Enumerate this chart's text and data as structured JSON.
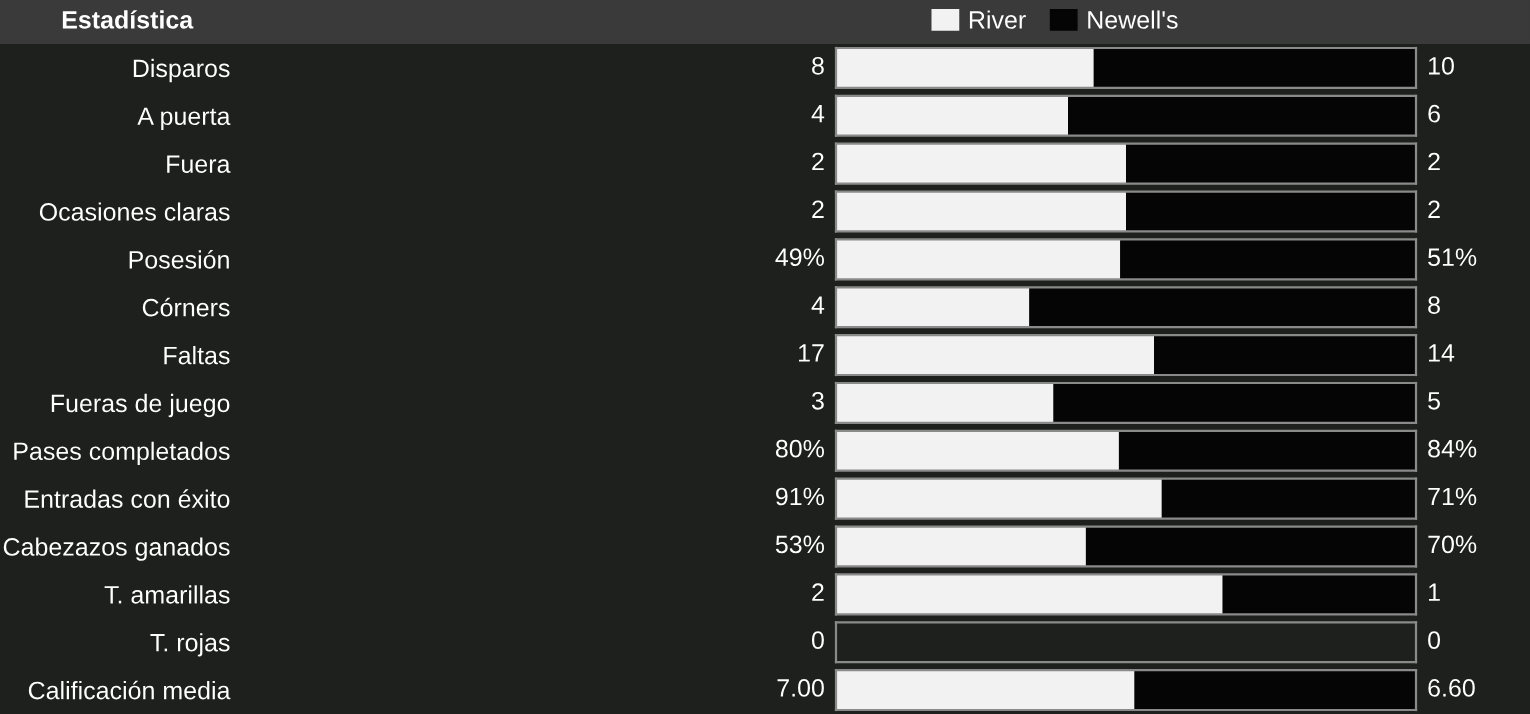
{
  "chart_data": [
    {
      "type": "bar",
      "orientation": "horizontal",
      "stacked": true,
      "title": "Estadística",
      "legend": "top",
      "categories": [
        "Disparos"
      ],
      "xlim": [
        0,
        18
      ],
      "series": [
        {
          "name": "River",
          "color": "#f2f2f2",
          "values": [
            8
          ],
          "value_labels": [
            "8"
          ]
        },
        {
          "name": "Newell's",
          "color": "#050505",
          "values": [
            10
          ],
          "value_labels": [
            "10"
          ]
        }
      ]
    },
    {
      "type": "bar",
      "orientation": "horizontal",
      "stacked": true,
      "categories": [
        "A puerta"
      ],
      "xlim": [
        0,
        10
      ],
      "series": [
        {
          "color": "#f2f2f2",
          "values": [
            4
          ],
          "value_labels": [
            "4"
          ]
        },
        {
          "color": "#050505",
          "values": [
            6
          ],
          "value_labels": [
            "6"
          ]
        }
      ]
    },
    {
      "type": "bar",
      "orientation": "horizontal",
      "stacked": true,
      "categories": [
        "Fuera"
      ],
      "xlim": [
        0,
        4
      ],
      "series": [
        {
          "color": "#f2f2f2",
          "values": [
            2
          ],
          "value_labels": [
            "2"
          ]
        },
        {
          "color": "#050505",
          "values": [
            2
          ],
          "value_labels": [
            "2"
          ]
        }
      ]
    },
    {
      "type": "bar",
      "orientation": "horizontal",
      "stacked": true,
      "categories": [
        "Ocasiones claras"
      ],
      "xlim": [
        0,
        4
      ],
      "series": [
        {
          "color": "#f2f2f2",
          "values": [
            2
          ],
          "value_labels": [
            "2"
          ]
        },
        {
          "color": "#050505",
          "values": [
            2
          ],
          "value_labels": [
            "2"
          ]
        }
      ]
    },
    {
      "type": "bar",
      "orientation": "horizontal",
      "stacked": true,
      "categories": [
        "Posesión"
      ],
      "xlim": [
        0,
        100
      ],
      "series": [
        {
          "color": "#f2f2f2",
          "values": [
            49
          ],
          "value_labels": [
            "49%"
          ]
        },
        {
          "color": "#050505",
          "values": [
            51
          ],
          "value_labels": [
            "51%"
          ]
        }
      ]
    },
    {
      "type": "bar",
      "orientation": "horizontal",
      "stacked": true,
      "categories": [
        "Córners"
      ],
      "xlim": [
        0,
        12
      ],
      "series": [
        {
          "color": "#f2f2f2",
          "values": [
            4
          ],
          "value_labels": [
            "4"
          ]
        },
        {
          "color": "#050505",
          "values": [
            8
          ],
          "value_labels": [
            "8"
          ]
        }
      ]
    },
    {
      "type": "bar",
      "orientation": "horizontal",
      "stacked": true,
      "categories": [
        "Faltas"
      ],
      "xlim": [
        0,
        31
      ],
      "series": [
        {
          "color": "#f2f2f2",
          "values": [
            17
          ],
          "value_labels": [
            "17"
          ]
        },
        {
          "color": "#050505",
          "values": [
            14
          ],
          "value_labels": [
            "14"
          ]
        }
      ]
    },
    {
      "type": "bar",
      "orientation": "horizontal",
      "stacked": true,
      "categories": [
        "Fueras de juego"
      ],
      "xlim": [
        0,
        8
      ],
      "series": [
        {
          "color": "#f2f2f2",
          "values": [
            3
          ],
          "value_labels": [
            "3"
          ]
        },
        {
          "color": "#050505",
          "values": [
            5
          ],
          "value_labels": [
            "5"
          ]
        }
      ]
    },
    {
      "type": "bar",
      "orientation": "horizontal",
      "stacked": true,
      "categories": [
        "Pases completados"
      ],
      "xlim": [
        0,
        164
      ],
      "series": [
        {
          "color": "#f2f2f2",
          "values": [
            80
          ],
          "value_labels": [
            "80%"
          ]
        },
        {
          "color": "#050505",
          "values": [
            84
          ],
          "value_labels": [
            "84%"
          ]
        }
      ]
    },
    {
      "type": "bar",
      "orientation": "horizontal",
      "stacked": true,
      "categories": [
        "Entradas con éxito"
      ],
      "xlim": [
        0,
        162
      ],
      "series": [
        {
          "color": "#f2f2f2",
          "values": [
            91
          ],
          "value_labels": [
            "91%"
          ]
        },
        {
          "color": "#050505",
          "values": [
            71
          ],
          "value_labels": [
            "71%"
          ]
        }
      ]
    },
    {
      "type": "bar",
      "orientation": "horizontal",
      "stacked": true,
      "categories": [
        "Cabezazos ganados"
      ],
      "xlim": [
        0,
        123
      ],
      "series": [
        {
          "color": "#f2f2f2",
          "values": [
            53
          ],
          "value_labels": [
            "53%"
          ]
        },
        {
          "color": "#050505",
          "values": [
            70
          ],
          "value_labels": [
            "70%"
          ]
        }
      ]
    },
    {
      "type": "bar",
      "orientation": "horizontal",
      "stacked": true,
      "categories": [
        "T. amarillas"
      ],
      "xlim": [
        0,
        3
      ],
      "series": [
        {
          "color": "#f2f2f2",
          "values": [
            2
          ],
          "value_labels": [
            "2"
          ]
        },
        {
          "color": "#050505",
          "values": [
            1
          ],
          "value_labels": [
            "1"
          ]
        }
      ]
    },
    {
      "type": "other",
      "categories": [
        "T. rojas"
      ],
      "series": [
        {
          "color": "#f2f2f2",
          "values": [
            0
          ],
          "value_labels": [
            "0"
          ]
        },
        {
          "color": "#050505",
          "values": [
            0
          ],
          "value_labels": [
            "0"
          ]
        }
      ]
    },
    {
      "type": "bar",
      "orientation": "horizontal",
      "stacked": true,
      "categories": [
        "Calificación media"
      ],
      "xlim": [
        0,
        13.6
      ],
      "series": [
        {
          "color": "#f2f2f2",
          "values": [
            7.0
          ],
          "value_labels": [
            "7.00"
          ]
        },
        {
          "color": "#050505",
          "values": [
            6.6
          ],
          "value_labels": [
            "6.60"
          ]
        }
      ]
    }
  ]
}
